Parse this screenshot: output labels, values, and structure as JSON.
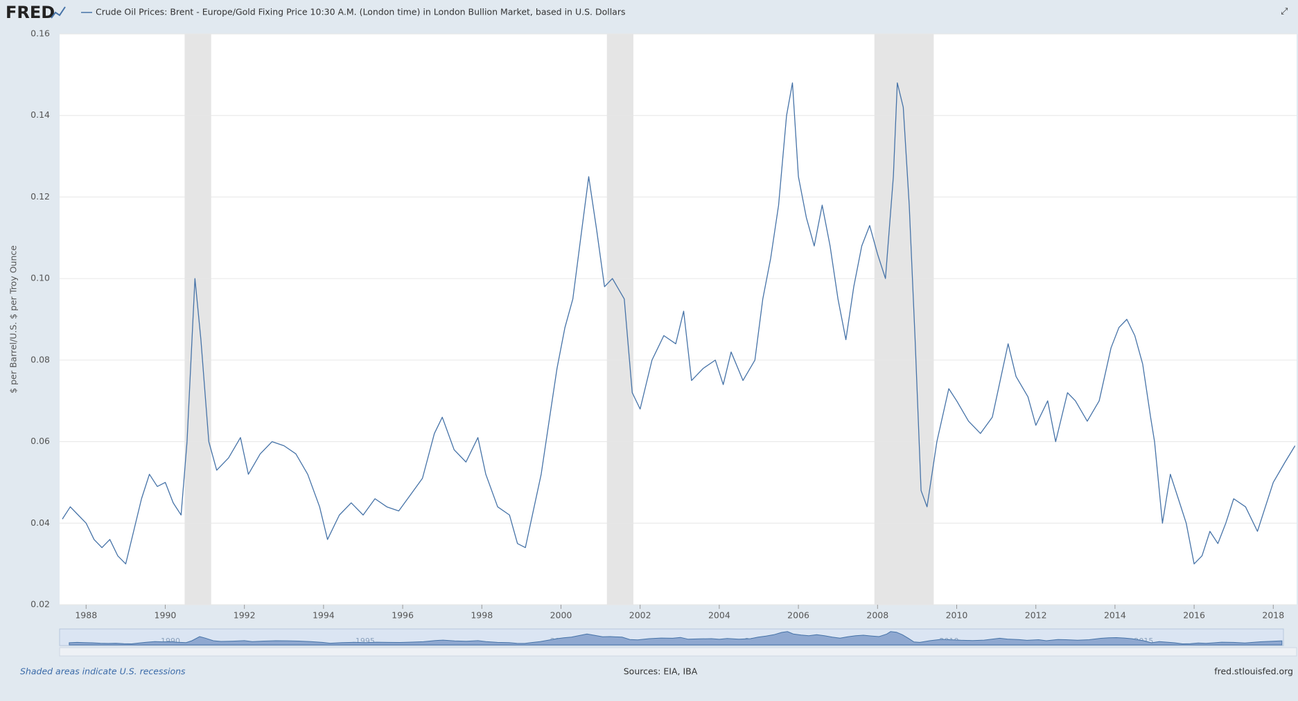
{
  "chart_data": {
    "type": "line",
    "logo": "FRED",
    "ylabel": "$ per Barrel/U.S. $ per Troy Ounce",
    "note": "Shaded areas indicate U.S. recessions",
    "sources": "Sources: EIA, IBA",
    "url": "fred.stlouisfed.org",
    "xlim": [
      1987.33,
      2018.59
    ],
    "xticks": [
      1988,
      1990,
      1992,
      1994,
      1996,
      1998,
      2000,
      2002,
      2004,
      2006,
      2008,
      2010,
      2012,
      2014,
      2016,
      2018
    ],
    "ylim": [
      0.02,
      0.16
    ],
    "yticks": [
      {
        "value": 0.02,
        "label": "0.02"
      },
      {
        "value": 0.04,
        "label": "0.04"
      },
      {
        "value": 0.06,
        "label": "0.06"
      },
      {
        "value": 0.08,
        "label": "0.08"
      },
      {
        "value": 0.1,
        "label": "0.10"
      },
      {
        "value": 0.12,
        "label": "0.12"
      },
      {
        "value": 0.14,
        "label": "0.14"
      },
      {
        "value": 0.16,
        "label": "0.16"
      }
    ],
    "grid": true,
    "recessions": [
      [
        1990.49,
        1991.16
      ],
      [
        2001.16,
        2001.83
      ],
      [
        2007.92,
        2009.42
      ]
    ],
    "navigator_ticks": [
      1990,
      1995,
      2000,
      2005,
      2010,
      2015
    ],
    "x": [
      1987.4,
      1987.6,
      1987.8,
      1988.0,
      1988.2,
      1988.4,
      1988.6,
      1988.8,
      1989.0,
      1989.2,
      1989.4,
      1989.6,
      1989.8,
      1990.0,
      1990.2,
      1990.4,
      1990.55,
      1990.75,
      1990.9,
      1991.1,
      1991.3,
      1991.6,
      1991.9,
      1992.1,
      1992.4,
      1992.7,
      1993.0,
      1993.3,
      1993.6,
      1993.9,
      1994.1,
      1994.4,
      1994.7,
      1995.0,
      1995.3,
      1995.6,
      1995.9,
      1996.2,
      1996.5,
      1996.8,
      1997.0,
      1997.3,
      1997.6,
      1997.9,
      1998.1,
      1998.4,
      1998.7,
      1998.9,
      1999.1,
      1999.3,
      1999.5,
      1999.7,
      1999.9,
      2000.1,
      2000.3,
      2000.5,
      2000.7,
      2000.9,
      2001.1,
      2001.3,
      2001.6,
      2001.8,
      2002.0,
      2002.3,
      2002.6,
      2002.9,
      2003.1,
      2003.3,
      2003.6,
      2003.9,
      2004.1,
      2004.3,
      2004.6,
      2004.9,
      2005.1,
      2005.3,
      2005.5,
      2005.7,
      2005.85,
      2006.0,
      2006.2,
      2006.4,
      2006.6,
      2006.8,
      2007.0,
      2007.2,
      2007.4,
      2007.6,
      2007.8,
      2008.0,
      2008.2,
      2008.4,
      2008.5,
      2008.65,
      2008.8,
      2008.95,
      2009.1,
      2009.25,
      2009.5,
      2009.8,
      2010.0,
      2010.3,
      2010.6,
      2010.9,
      2011.1,
      2011.3,
      2011.5,
      2011.8,
      2012.0,
      2012.3,
      2012.5,
      2012.8,
      2013.0,
      2013.3,
      2013.6,
      2013.9,
      2014.1,
      2014.3,
      2014.5,
      2014.7,
      2014.9,
      2015.0,
      2015.2,
      2015.4,
      2015.6,
      2015.8,
      2016.0,
      2016.2,
      2016.4,
      2016.6,
      2016.8,
      2017.0,
      2017.3,
      2017.6,
      2017.8,
      2018.0,
      2018.3,
      2018.55
    ],
    "series": [
      {
        "name": "Crude Oil Prices: Brent - Europe/Gold Fixing Price 10:30 A.M. (London time) in London Bullion Market, based in U.S. Dollars",
        "color": "#4572a7",
        "values": [
          0.041,
          0.044,
          0.042,
          0.04,
          0.036,
          0.034,
          0.036,
          0.032,
          0.03,
          0.038,
          0.046,
          0.052,
          0.049,
          0.05,
          0.045,
          0.042,
          0.06,
          0.1,
          0.085,
          0.06,
          0.053,
          0.056,
          0.061,
          0.052,
          0.057,
          0.06,
          0.059,
          0.057,
          0.052,
          0.044,
          0.036,
          0.042,
          0.045,
          0.042,
          0.046,
          0.044,
          0.043,
          0.047,
          0.051,
          0.062,
          0.066,
          0.058,
          0.055,
          0.061,
          0.052,
          0.044,
          0.042,
          0.035,
          0.034,
          0.043,
          0.052,
          0.065,
          0.078,
          0.088,
          0.095,
          0.11,
          0.125,
          0.112,
          0.098,
          0.1,
          0.095,
          0.072,
          0.068,
          0.08,
          0.086,
          0.084,
          0.092,
          0.075,
          0.078,
          0.08,
          0.074,
          0.082,
          0.075,
          0.08,
          0.095,
          0.105,
          0.118,
          0.14,
          0.148,
          0.125,
          0.115,
          0.108,
          0.118,
          0.108,
          0.095,
          0.085,
          0.098,
          0.108,
          0.113,
          0.106,
          0.1,
          0.125,
          0.148,
          0.142,
          0.118,
          0.085,
          0.048,
          0.044,
          0.06,
          0.073,
          0.07,
          0.065,
          0.062,
          0.066,
          0.075,
          0.084,
          0.076,
          0.071,
          0.064,
          0.07,
          0.06,
          0.072,
          0.07,
          0.065,
          0.07,
          0.083,
          0.088,
          0.09,
          0.086,
          0.079,
          0.066,
          0.06,
          0.04,
          0.052,
          0.046,
          0.04,
          0.03,
          0.032,
          0.038,
          0.035,
          0.04,
          0.046,
          0.044,
          0.038,
          0.044,
          0.05,
          0.055,
          0.059
        ]
      }
    ]
  }
}
